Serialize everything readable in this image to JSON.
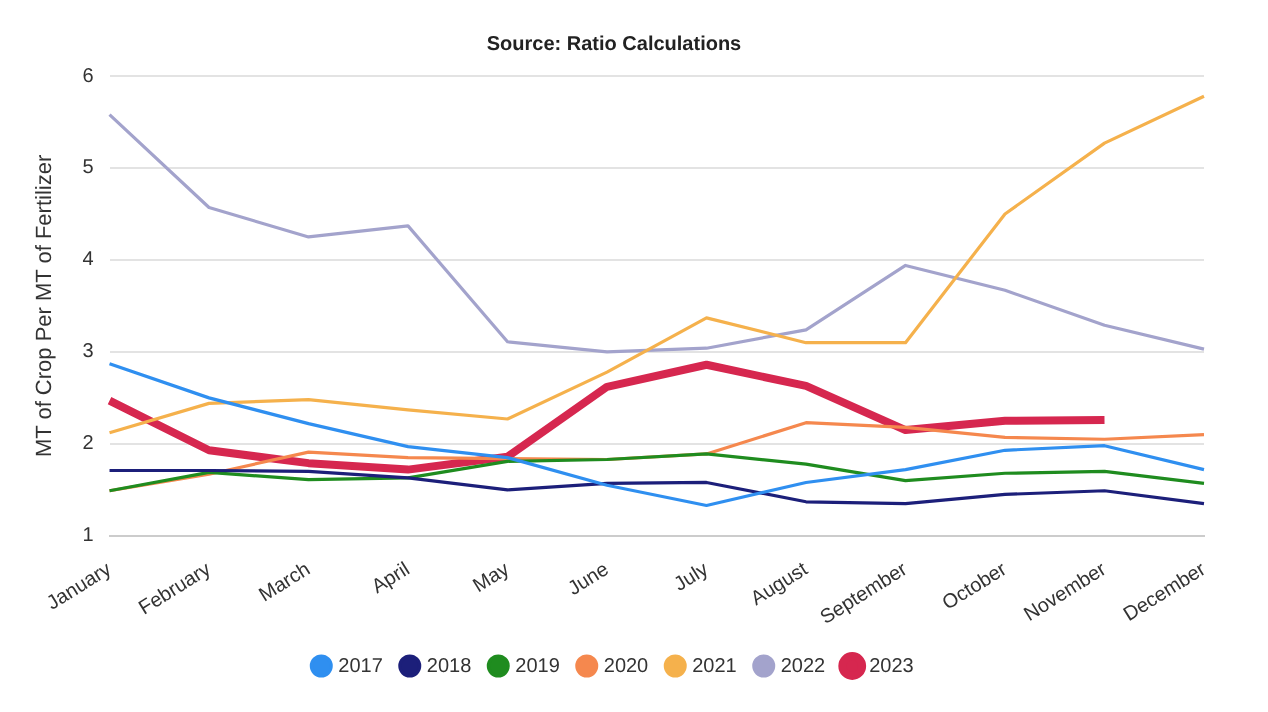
{
  "chart_data": {
    "type": "line",
    "title": "Source: Ratio Calculations",
    "ylabel": "MT of Crop Per MT of Fertilizer",
    "categories": [
      "January",
      "February",
      "March",
      "April",
      "May",
      "June",
      "July",
      "August",
      "September",
      "October",
      "November",
      "December"
    ],
    "ylim": [
      1,
      6
    ],
    "yticks": [
      1,
      2,
      3,
      4,
      5,
      6
    ],
    "grid": "y",
    "legend": "bottom",
    "marker": "none",
    "series": [
      {
        "name": "2017",
        "color": "#2f8ff0",
        "values": [
          2.87,
          2.5,
          2.22,
          1.97,
          1.85,
          1.55,
          1.33,
          1.58,
          1.72,
          1.93,
          1.98,
          1.72
        ]
      },
      {
        "name": "2018",
        "color": "#1c1f7a",
        "values": [
          1.71,
          1.71,
          1.7,
          1.63,
          1.5,
          1.57,
          1.58,
          1.37,
          1.35,
          1.45,
          1.49,
          1.35
        ]
      },
      {
        "name": "2019",
        "color": "#1f8c1f",
        "values": [
          1.49,
          1.69,
          1.61,
          1.63,
          1.81,
          1.83,
          1.89,
          1.78,
          1.6,
          1.68,
          1.7,
          1.57
        ]
      },
      {
        "name": "2020",
        "color": "#f5884e",
        "values": [
          1.49,
          1.67,
          1.91,
          1.85,
          1.84,
          1.83,
          1.89,
          2.23,
          2.18,
          2.07,
          2.05,
          2.1
        ]
      },
      {
        "name": "2021",
        "color": "#f5b14c",
        "values": [
          2.12,
          2.44,
          2.48,
          2.37,
          2.27,
          2.78,
          3.37,
          3.1,
          3.1,
          4.5,
          5.27,
          5.78
        ]
      },
      {
        "name": "2022",
        "color": "#a3a3cc",
        "values": [
          5.58,
          4.57,
          4.25,
          4.37,
          3.11,
          3.0,
          3.04,
          3.24,
          3.94,
          3.67,
          3.29,
          3.03
        ]
      },
      {
        "name": "2023",
        "color": "#d6274f",
        "values": [
          2.47,
          1.93,
          1.79,
          1.72,
          1.86,
          2.62,
          2.86,
          2.63,
          2.15,
          2.25,
          2.26,
          null
        ]
      }
    ]
  }
}
